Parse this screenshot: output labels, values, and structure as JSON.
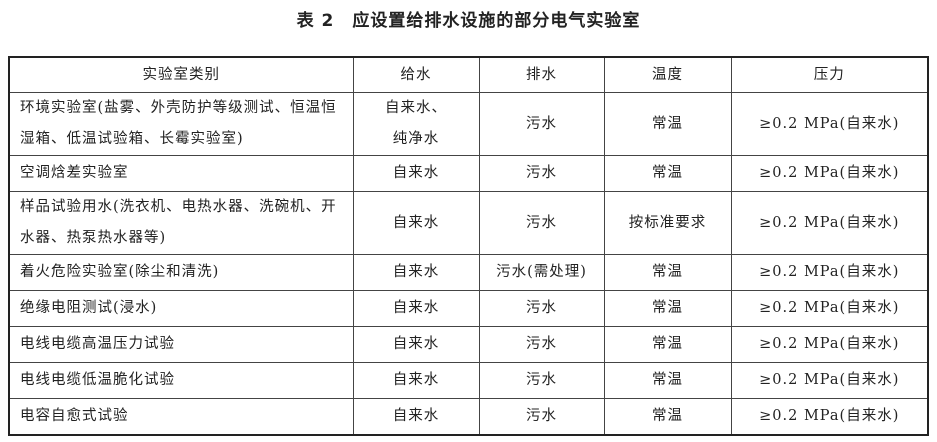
{
  "title": "表 2　应设置给排水设施的部分电气实验室",
  "headers": [
    "实验室类别",
    "给水",
    "排水",
    "温度",
    "压力"
  ],
  "rows": [
    [
      "环境实验室(盐雾、外壳防护等级测试、恒温恒湿箱、低温试验箱、长霉实验室)",
      "自来水、纯净水",
      "污水",
      "常温",
      "≥0.2 MPa(自来水)"
    ],
    [
      "空调焓差实验室",
      "自来水",
      "污水",
      "常温",
      "≥0.2 MPa(自来水)"
    ],
    [
      "样品试验用水(洗衣机、电热水器、洗碗机、开水器、热泵热水器等)",
      "自来水",
      "污水",
      "按标准要求",
      "≥0.2 MPa(自来水)"
    ],
    [
      "着火危险实验室(除尘和清洗)",
      "自来水",
      "污水(需处理)",
      "常温",
      "≥0.2 MPa(自来水)"
    ],
    [
      "绝缘电阻测试(浸水)",
      "自来水",
      "污水",
      "常温",
      "≥0.2 MPa(自来水)"
    ],
    [
      "电线电缆高温压力试验",
      "自来水",
      "污水",
      "常温",
      "≥0.2 MPa(自来水)"
    ],
    [
      "电线电缆低温脆化试验",
      "自来水",
      "污水",
      "常温",
      "≥0.2 MPa(自来水)"
    ],
    [
      "电容自愈式试验",
      "自来水",
      "污水",
      "常温",
      "≥0.2 MPa(自来水)"
    ]
  ]
}
